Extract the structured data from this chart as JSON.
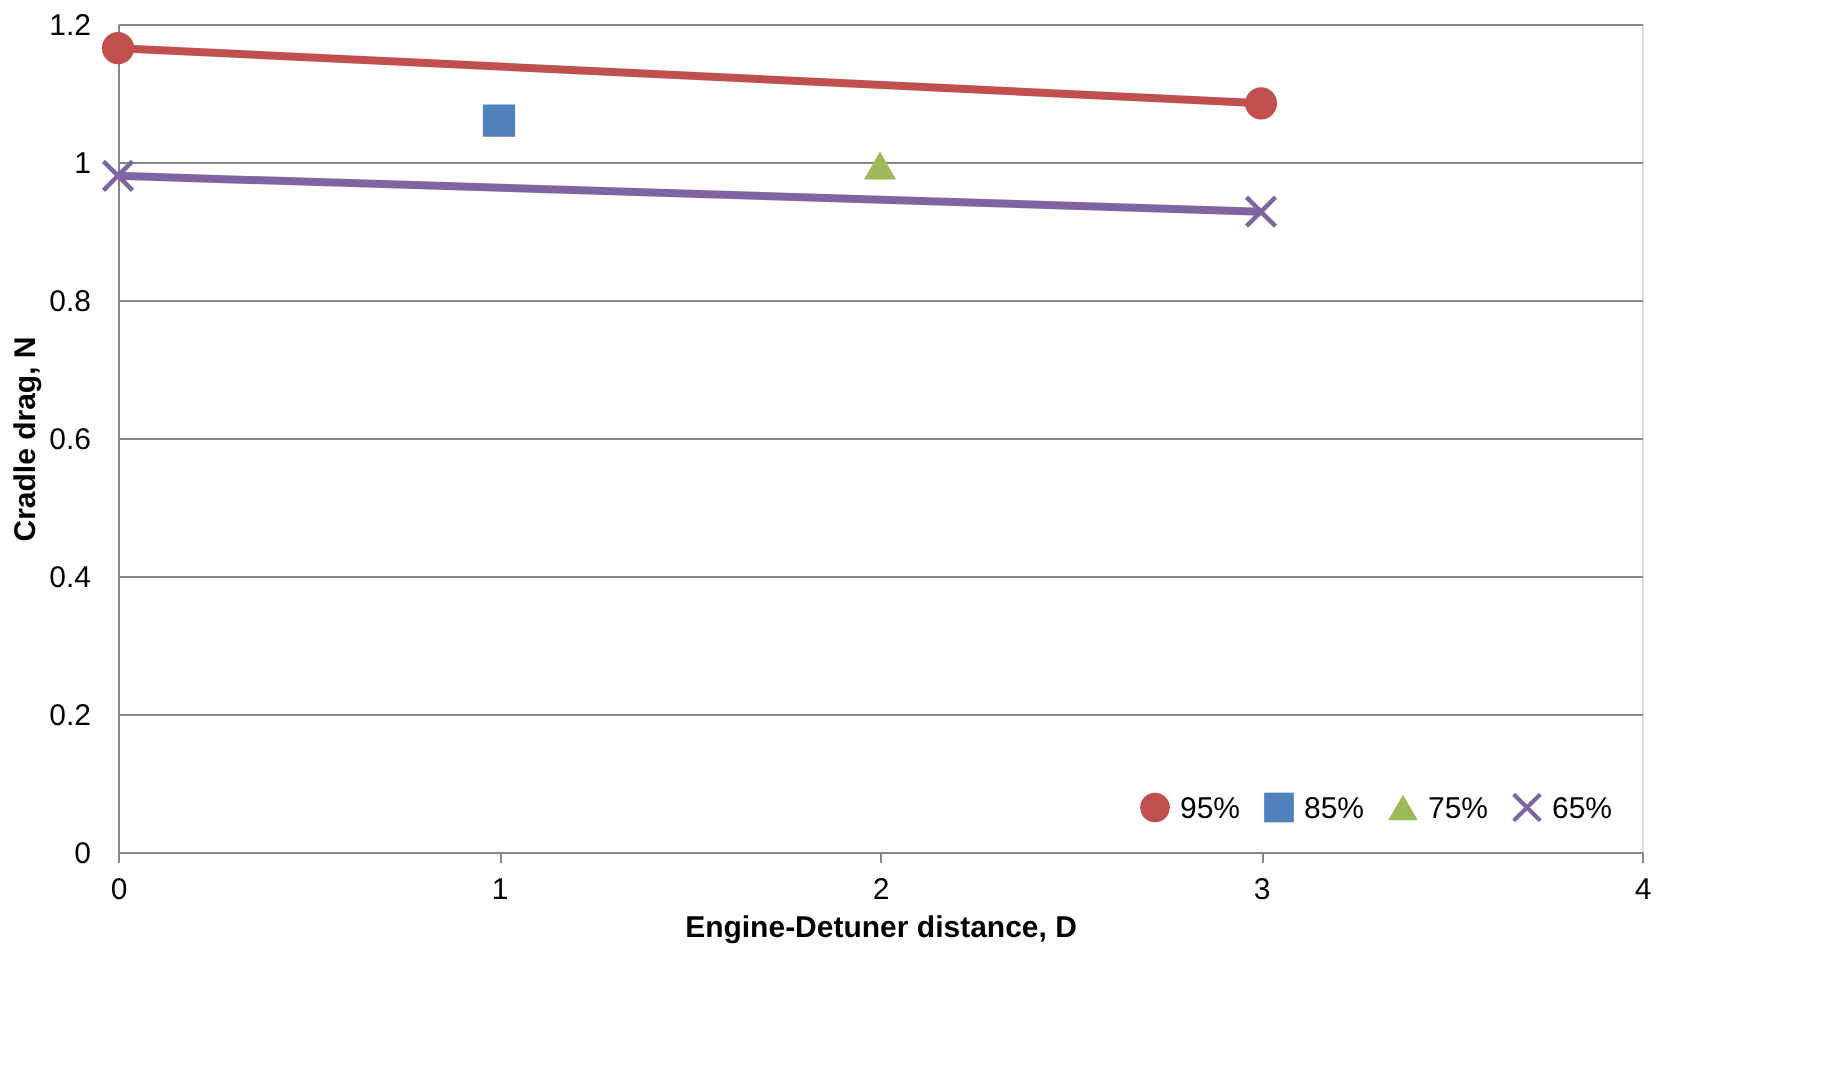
{
  "chart_data": {
    "type": "line",
    "xlabel": "Engine-Detuner distance, D",
    "ylabel": "Cradle drag, N",
    "xlim": [
      0,
      4
    ],
    "xticks": [
      0,
      1,
      2,
      3,
      4
    ],
    "ylim": [
      0,
      1.2
    ],
    "yticks": [
      0,
      0.2,
      0.4,
      0.6,
      0.8,
      1,
      1.2
    ],
    "grid": "y",
    "legend": "bottom right",
    "series": [
      {
        "name": "95%",
        "color": "#c0504d",
        "marker": "circle",
        "x": [
          0,
          3
        ],
        "values": [
          1.165,
          1.085
        ]
      },
      {
        "name": "85%",
        "color": "#4f81bd",
        "marker": "square",
        "x": [
          1
        ],
        "values": [
          1.06
        ]
      },
      {
        "name": "75%",
        "color": "#9bbb59",
        "marker": "triangle",
        "x": [
          2
        ],
        "values": [
          0.995
        ]
      },
      {
        "name": "65%",
        "color": "#8064a2",
        "marker": "cross",
        "x": [
          0,
          3
        ],
        "values": [
          0.98,
          0.928
        ]
      }
    ]
  }
}
